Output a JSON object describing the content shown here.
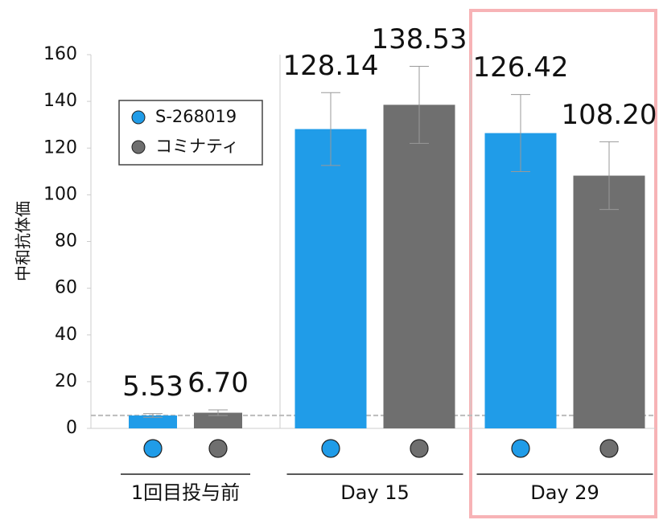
{
  "chart_data": {
    "type": "bar",
    "y_label": "中和抗体価",
    "categories": [
      "1回目投与前",
      "Day 15",
      "Day 29"
    ],
    "series": [
      {
        "name": "S-268019",
        "color": "#209ce8",
        "values": [
          5.53,
          128.14,
          126.42
        ],
        "value_labels": [
          "5.53",
          "128.14",
          "126.42"
        ],
        "errors": [
          0.8,
          15.6,
          16.5
        ]
      },
      {
        "name": "コミナティ",
        "color": "#6f6f6f",
        "values": [
          6.7,
          138.53,
          108.2
        ],
        "value_labels": [
          "6.70",
          "138.53",
          "108.20"
        ],
        "errors": [
          1.2,
          16.5,
          14.5
        ]
      }
    ],
    "ylim": [
      0,
      160
    ],
    "yticks": [
      0,
      20,
      40,
      60,
      80,
      100,
      120,
      140,
      160
    ],
    "reference_line": 5.53,
    "highlight_index": 2,
    "highlight_color": "#f27a80"
  }
}
